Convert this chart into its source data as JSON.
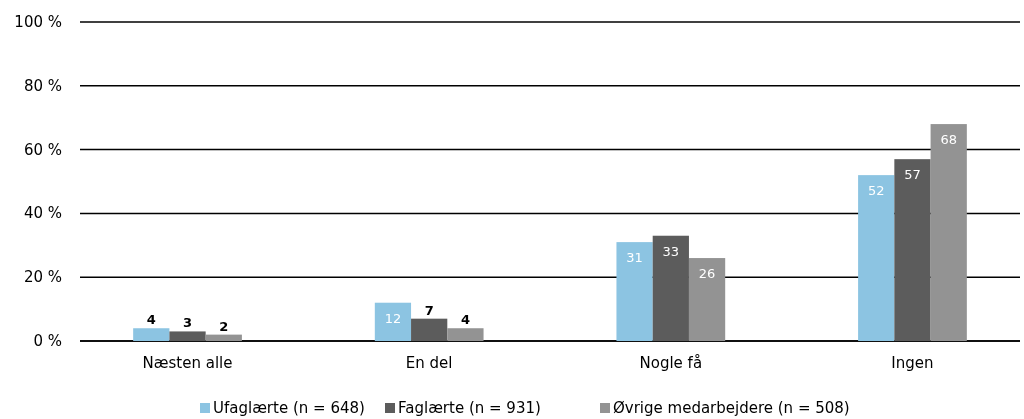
{
  "chart_data": {
    "type": "bar",
    "categories": [
      "Næsten alle",
      "En del",
      "Nogle få",
      "Ingen"
    ],
    "series": [
      {
        "name": "Ufaglærte (n = 648)",
        "color": "#8cc4e2",
        "values": [
          4,
          12,
          31,
          52
        ]
      },
      {
        "name": "Faglærte (n = 931)",
        "color": "#5c5c5c",
        "values": [
          3,
          7,
          33,
          57
        ]
      },
      {
        "name": "Øvrige medarbejdere (n = 508)",
        "color": "#939393",
        "values": [
          2,
          4,
          26,
          68
        ]
      }
    ],
    "ylim": [
      0,
      100
    ],
    "yticks": [
      {
        "value": 0,
        "label": "0 %"
      },
      {
        "value": 20,
        "label": "20 %"
      },
      {
        "value": 40,
        "label": "40 %"
      },
      {
        "value": 60,
        "label": "60 %"
      },
      {
        "value": 80,
        "label": "80 %"
      },
      {
        "value": 100,
        "label": "100 %"
      }
    ],
    "grid": "y",
    "legend": "bottom",
    "data_labels": true
  }
}
